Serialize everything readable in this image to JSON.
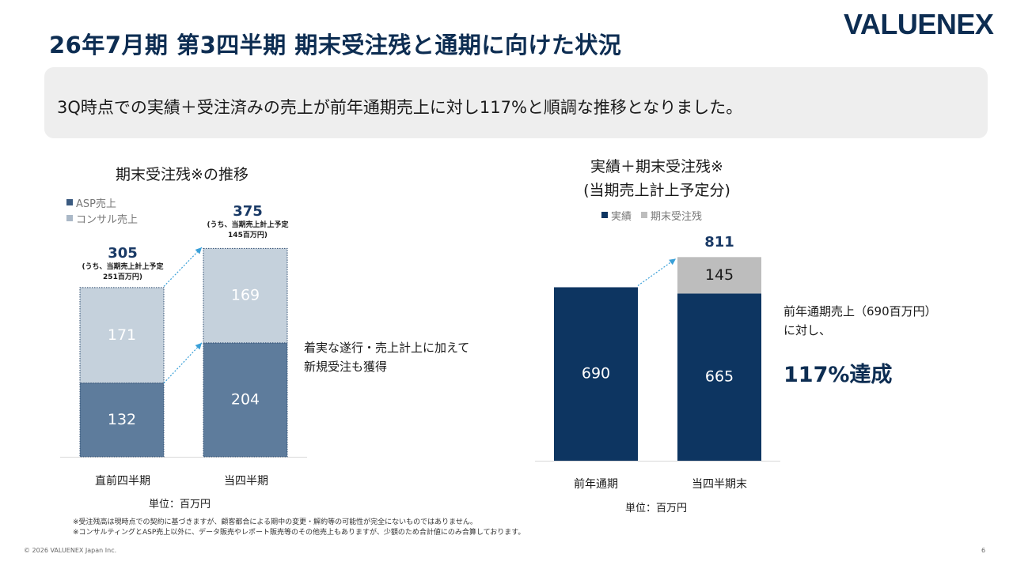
{
  "header": {
    "title": "26年7月期 第3四半期 期末受注残と通期に向けた状況",
    "logo": "VALUENEX"
  },
  "banner": {
    "text": "3Q時点での実績＋受注済みの売上が前年通期売上に対し117%と順調な推移となりました。"
  },
  "colors": {
    "asp": "#5e7c9c",
    "consult": "#c5d1dc",
    "actual": "#0d3561",
    "backlog": "#bdbdbd",
    "arrow": "#3aa0d8"
  },
  "chart_data": [
    {
      "type": "bar",
      "title": "期末受注残※の推移",
      "categories": [
        "直前四半期",
        "当四半期"
      ],
      "series": [
        {
          "name": "ASP売上",
          "values": [
            132,
            204
          ]
        },
        {
          "name": "コンサル売上",
          "values": [
            171,
            169
          ]
        }
      ],
      "totals": [
        "305",
        "375"
      ],
      "total_notes": [
        [
          "(うち、当期売上計上予定",
          "251百万円)"
        ],
        [
          "(うち、当期売上計上予定",
          "145百万円)"
        ]
      ],
      "unit": "単位：百万円",
      "ylim": [
        0,
        400
      ],
      "stacked": true,
      "legend": "top-left",
      "annotation": [
        "着実な遂行・売上計上に加えて",
        "新規受注も獲得"
      ]
    },
    {
      "type": "bar",
      "title": [
        "実績＋期末受注残※",
        "(当期売上計上予定分)"
      ],
      "categories": [
        "前年通期",
        "当四半期末"
      ],
      "series": [
        {
          "name": "実績",
          "values": [
            690,
            665
          ]
        },
        {
          "name": "期末受注残",
          "values": [
            0,
            145
          ]
        }
      ],
      "totals": [
        "",
        "811"
      ],
      "unit": "単位：百万円",
      "ylim": [
        0,
        850
      ],
      "stacked": true,
      "legend": "top",
      "annotation": [
        "前年通期売上（690百万円）",
        "に対し、"
      ],
      "highlight": "117%達成"
    }
  ],
  "footnotes": [
    "※受注残高は現時点での契約に基づきますが、顧客都合による期中の変更・解約等の可能性が完全にないものではありません。",
    "※コンサルティングとASP売上以外に、データ販売やレポート販売等のその他売上もありますが、少額のため合計値にのみ合算しております。"
  ],
  "footer": {
    "copyright": "© 2026 VALUENEX Japan Inc.",
    "page": "6"
  }
}
